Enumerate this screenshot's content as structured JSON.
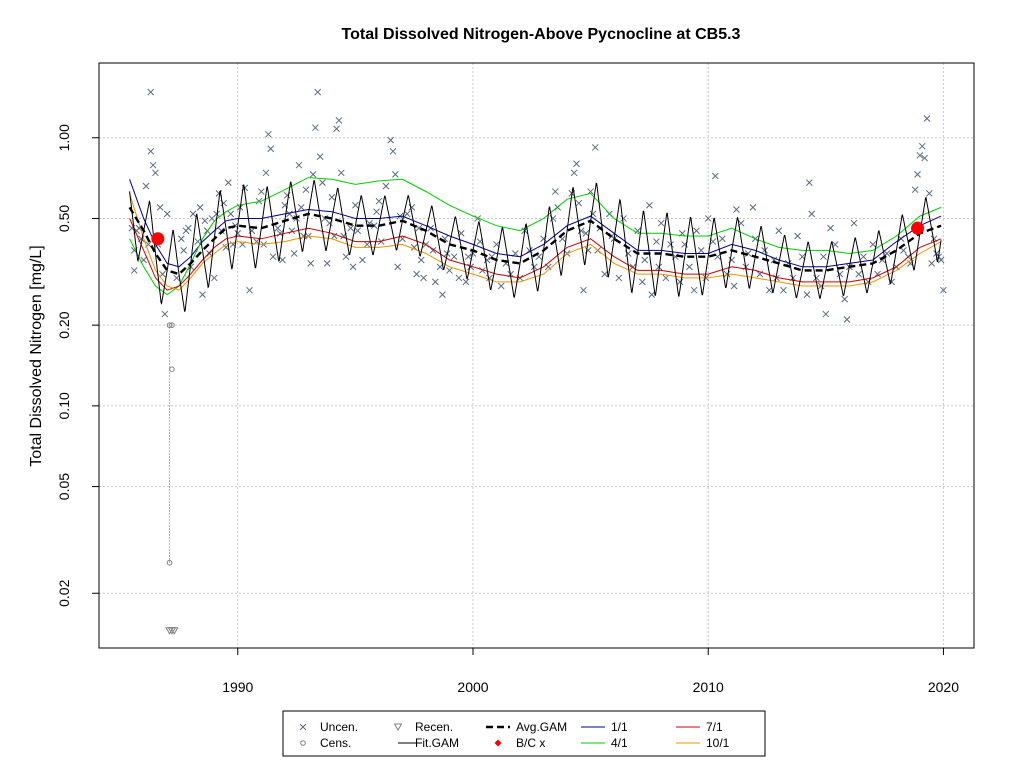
{
  "chart_data": {
    "type": "scatter",
    "title": "Total Dissolved Nitrogen-Above Pycnocline at CB5.3",
    "xlabel": "",
    "ylabel": "Total Dissolved Nitrogen [mg/L]",
    "y_scale": "log",
    "xlim": [
      1984.1,
      2021.3
    ],
    "ylim": [
      0.0125,
      1.9
    ],
    "x_ticks": [
      1990,
      2000,
      2010,
      2020
    ],
    "y_ticks": [
      0.02,
      0.05,
      0.1,
      0.2,
      0.5,
      1.0
    ],
    "y_tick_labels": [
      "0.02",
      "0.05",
      "0.10",
      "0.20",
      "0.50",
      "1.00"
    ],
    "grid": true,
    "legend_position": "bottom",
    "legend": [
      {
        "label": "Uncen.",
        "symbol": "x",
        "color": "#5a6a80"
      },
      {
        "label": "Recen.",
        "symbol": "triangle",
        "color": "#808080"
      },
      {
        "label": "Avg.GAM",
        "symbol": "dashed-line",
        "color": "#000000"
      },
      {
        "label": "1/1",
        "symbol": "line",
        "color": "#00008b"
      },
      {
        "label": "7/1",
        "symbol": "line",
        "color": "#cc0000"
      },
      {
        "label": "Cens.",
        "symbol": "circle",
        "color": "#808080"
      },
      {
        "label": "Fit.GAM",
        "symbol": "line",
        "color": "#000000"
      },
      {
        "label": "B/C x",
        "symbol": "diamond",
        "color": "#ff0000"
      },
      {
        "label": "4/1",
        "symbol": "line",
        "color": "#00cc00"
      },
      {
        "label": "10/1",
        "symbol": "line",
        "color": "#e69500"
      }
    ],
    "avg_gam": {
      "x": [
        1985.4,
        1986.0,
        1986.5,
        1987.0,
        1987.5,
        1988.0,
        1988.5,
        1989.0,
        1989.5,
        1990.0,
        1991.0,
        1992.0,
        1993.0,
        1994.0,
        1995.0,
        1996.0,
        1997.0,
        1998.0,
        1999.0,
        2000.0,
        2001.0,
        2002.0,
        2003.0,
        2004.0,
        2005.0,
        2006.0,
        2007.0,
        2008.0,
        2009.0,
        2010.0,
        2011.0,
        2012.0,
        2013.0,
        2014.0,
        2015.0,
        2016.0,
        2017.0,
        2018.0,
        2019.0,
        2019.9
      ],
      "y": [
        0.55,
        0.45,
        0.37,
        0.32,
        0.31,
        0.34,
        0.38,
        0.42,
        0.46,
        0.47,
        0.46,
        0.49,
        0.52,
        0.5,
        0.47,
        0.47,
        0.49,
        0.45,
        0.4,
        0.38,
        0.35,
        0.34,
        0.38,
        0.45,
        0.49,
        0.42,
        0.37,
        0.37,
        0.36,
        0.36,
        0.38,
        0.36,
        0.34,
        0.32,
        0.32,
        0.33,
        0.34,
        0.38,
        0.44,
        0.47
      ]
    },
    "seasonal_lines": [
      {
        "name": "1/1",
        "color": "#00008b",
        "y": [
          0.7,
          0.5,
          0.4,
          0.34,
          0.33,
          0.36,
          0.41,
          0.45,
          0.49,
          0.5,
          0.5,
          0.52,
          0.54,
          0.53,
          0.5,
          0.5,
          0.51,
          0.47,
          0.43,
          0.4,
          0.37,
          0.36,
          0.4,
          0.47,
          0.51,
          0.44,
          0.38,
          0.38,
          0.37,
          0.37,
          0.4,
          0.38,
          0.35,
          0.33,
          0.33,
          0.34,
          0.35,
          0.41,
          0.47,
          0.51
        ]
      },
      {
        "name": "4/1",
        "color": "#00cc00",
        "y": [
          0.42,
          0.33,
          0.28,
          0.26,
          0.28,
          0.34,
          0.42,
          0.49,
          0.53,
          0.56,
          0.58,
          0.64,
          0.71,
          0.7,
          0.67,
          0.69,
          0.7,
          0.63,
          0.56,
          0.51,
          0.47,
          0.45,
          0.5,
          0.59,
          0.62,
          0.5,
          0.44,
          0.44,
          0.43,
          0.43,
          0.46,
          0.42,
          0.39,
          0.38,
          0.38,
          0.37,
          0.38,
          0.43,
          0.51,
          0.55
        ]
      },
      {
        "name": "7/1",
        "color": "#cc0000",
        "y": [
          0.5,
          0.38,
          0.3,
          0.27,
          0.28,
          0.31,
          0.35,
          0.39,
          0.42,
          0.43,
          0.42,
          0.44,
          0.46,
          0.44,
          0.41,
          0.41,
          0.43,
          0.4,
          0.35,
          0.33,
          0.31,
          0.3,
          0.33,
          0.39,
          0.42,
          0.36,
          0.32,
          0.32,
          0.31,
          0.31,
          0.33,
          0.32,
          0.3,
          0.29,
          0.29,
          0.29,
          0.3,
          0.33,
          0.39,
          0.42
        ]
      },
      {
        "name": "10/1",
        "color": "#e69500",
        "y": [
          0.62,
          0.42,
          0.32,
          0.28,
          0.27,
          0.3,
          0.34,
          0.37,
          0.4,
          0.41,
          0.4,
          0.41,
          0.43,
          0.42,
          0.39,
          0.39,
          0.4,
          0.37,
          0.33,
          0.31,
          0.29,
          0.29,
          0.31,
          0.37,
          0.4,
          0.34,
          0.31,
          0.31,
          0.3,
          0.3,
          0.31,
          0.3,
          0.29,
          0.28,
          0.28,
          0.28,
          0.29,
          0.32,
          0.37,
          0.41
        ]
      }
    ],
    "fit_gam_seasonal": {
      "amplitude_ratio_max": 0.4,
      "amplitude_ratio_min": 0.26,
      "period_years": 1.0
    },
    "bc_points": [
      {
        "x": 1986.6,
        "y": 0.42
      },
      {
        "x": 2018.9,
        "y": 0.46
      }
    ],
    "censored_interval": {
      "x": 1987.1,
      "y_low": 0.026,
      "y_high": 0.2
    },
    "censored_points": [
      {
        "x": 1987.1,
        "y": 0.2
      },
      {
        "x": 1987.2,
        "y": 0.2
      },
      {
        "x": 1987.2,
        "y": 0.137
      },
      {
        "x": 1987.1,
        "y": 0.026
      }
    ],
    "recensored_points": [
      {
        "x": 1987.1,
        "y": 0.0145
      },
      {
        "x": 1987.2,
        "y": 0.0145
      },
      {
        "x": 1987.3,
        "y": 0.0145
      }
    ],
    "uncensored_points": [
      [
        1985.5,
        0.46
      ],
      [
        1985.6,
        0.32
      ],
      [
        1985.6,
        0.38
      ],
      [
        1985.7,
        0.45
      ],
      [
        1985.8,
        0.46
      ],
      [
        1985.9,
        0.42
      ],
      [
        1986.0,
        0.35
      ],
      [
        1986.1,
        0.66
      ],
      [
        1986.2,
        0.4
      ],
      [
        1986.3,
        1.48
      ],
      [
        1986.3,
        0.89
      ],
      [
        1986.4,
        0.79
      ],
      [
        1986.5,
        0.74
      ],
      [
        1986.6,
        0.4
      ],
      [
        1986.7,
        0.55
      ],
      [
        1986.8,
        0.31
      ],
      [
        1986.9,
        0.22
      ],
      [
        1987.0,
        0.52
      ],
      [
        1987.4,
        0.3
      ],
      [
        1987.6,
        0.42
      ],
      [
        1987.7,
        0.38
      ],
      [
        1987.8,
        0.45
      ],
      [
        1987.9,
        0.46
      ],
      [
        1988.0,
        0.33
      ],
      [
        1988.1,
        0.52
      ],
      [
        1988.3,
        0.41
      ],
      [
        1988.4,
        0.55
      ],
      [
        1988.5,
        0.26
      ],
      [
        1988.6,
        0.49
      ],
      [
        1988.7,
        0.45
      ],
      [
        1988.8,
        0.37
      ],
      [
        1988.9,
        0.5
      ],
      [
        1989.0,
        0.3
      ],
      [
        1989.1,
        0.52
      ],
      [
        1989.2,
        0.62
      ],
      [
        1989.3,
        0.45
      ],
      [
        1989.4,
        0.57
      ],
      [
        1989.5,
        0.39
      ],
      [
        1989.6,
        0.68
      ],
      [
        1989.7,
        0.52
      ],
      [
        1989.8,
        0.4
      ],
      [
        1989.9,
        0.47
      ],
      [
        1990.0,
        0.44
      ],
      [
        1990.1,
        0.55
      ],
      [
        1990.2,
        0.4
      ],
      [
        1990.3,
        0.65
      ],
      [
        1990.5,
        0.27
      ],
      [
        1990.6,
        0.45
      ],
      [
        1990.8,
        0.41
      ],
      [
        1990.9,
        0.58
      ],
      [
        1991.0,
        0.63
      ],
      [
        1991.1,
        0.4
      ],
      [
        1991.2,
        0.74
      ],
      [
        1991.3,
        1.03
      ],
      [
        1991.4,
        0.91
      ],
      [
        1991.5,
        0.36
      ],
      [
        1991.7,
        0.46
      ],
      [
        1991.8,
        0.44
      ],
      [
        1991.9,
        0.35
      ],
      [
        1992.0,
        0.56
      ],
      [
        1992.1,
        0.61
      ],
      [
        1992.2,
        0.52
      ],
      [
        1992.3,
        0.45
      ],
      [
        1992.4,
        0.37
      ],
      [
        1992.5,
        0.5
      ],
      [
        1992.6,
        0.79
      ],
      [
        1992.7,
        0.55
      ],
      [
        1992.8,
        0.43
      ],
      [
        1992.9,
        0.64
      ],
      [
        1993.0,
        0.43
      ],
      [
        1993.1,
        0.34
      ],
      [
        1993.2,
        0.73
      ],
      [
        1993.3,
        1.09
      ],
      [
        1993.4,
        1.48
      ],
      [
        1993.5,
        0.85
      ],
      [
        1993.6,
        0.68
      ],
      [
        1993.7,
        0.5
      ],
      [
        1993.8,
        0.34
      ],
      [
        1993.9,
        0.48
      ],
      [
        1994.0,
        0.6
      ],
      [
        1994.1,
        0.43
      ],
      [
        1994.2,
        1.08
      ],
      [
        1994.3,
        1.16
      ],
      [
        1994.4,
        0.74
      ],
      [
        1994.5,
        0.43
      ],
      [
        1994.6,
        0.36
      ],
      [
        1994.8,
        0.46
      ],
      [
        1994.9,
        0.33
      ],
      [
        1995.0,
        0.56
      ],
      [
        1995.1,
        0.45
      ],
      [
        1995.3,
        0.35
      ],
      [
        1995.5,
        0.4
      ],
      [
        1995.6,
        0.48
      ],
      [
        1995.8,
        0.47
      ],
      [
        1995.9,
        0.53
      ],
      [
        1996.0,
        0.58
      ],
      [
        1996.1,
        0.41
      ],
      [
        1996.3,
        0.66
      ],
      [
        1996.5,
        0.98
      ],
      [
        1996.6,
        0.89
      ],
      [
        1996.7,
        0.73
      ],
      [
        1996.8,
        0.33
      ],
      [
        1996.9,
        0.51
      ],
      [
        1997.0,
        0.42
      ],
      [
        1997.2,
        0.52
      ],
      [
        1997.4,
        0.55
      ],
      [
        1997.5,
        0.39
      ],
      [
        1997.6,
        0.31
      ],
      [
        1997.7,
        0.46
      ],
      [
        1997.8,
        0.35
      ],
      [
        1997.9,
        0.3
      ],
      [
        1998.0,
        0.4
      ],
      [
        1998.2,
        0.46
      ],
      [
        1998.3,
        0.38
      ],
      [
        1998.4,
        0.29
      ],
      [
        1998.6,
        0.33
      ],
      [
        1998.7,
        0.26
      ],
      [
        1998.8,
        0.42
      ],
      [
        1998.9,
        0.37
      ],
      [
        1999.0,
        0.32
      ],
      [
        1999.2,
        0.36
      ],
      [
        1999.4,
        0.3
      ],
      [
        1999.5,
        0.44
      ],
      [
        1999.7,
        0.29
      ],
      [
        1999.8,
        0.36
      ],
      [
        1999.9,
        0.33
      ],
      [
        2000.0,
        0.37
      ],
      [
        2000.2,
        0.5
      ],
      [
        2000.3,
        0.41
      ],
      [
        2000.4,
        0.32
      ],
      [
        2000.6,
        0.35
      ],
      [
        2000.7,
        0.3
      ],
      [
        2000.8,
        0.36
      ],
      [
        2001.0,
        0.4
      ],
      [
        2001.2,
        0.28
      ],
      [
        2001.4,
        0.34
      ],
      [
        2001.6,
        0.31
      ],
      [
        2001.8,
        0.37
      ],
      [
        2002.0,
        0.3
      ],
      [
        2002.2,
        0.45
      ],
      [
        2002.4,
        0.38
      ],
      [
        2002.6,
        0.33
      ],
      [
        2002.8,
        0.36
      ],
      [
        2003.0,
        0.42
      ],
      [
        2003.2,
        0.33
      ],
      [
        2003.4,
        0.5
      ],
      [
        2003.5,
        0.63
      ],
      [
        2003.6,
        0.55
      ],
      [
        2003.8,
        0.42
      ],
      [
        2004.0,
        0.37
      ],
      [
        2004.2,
        0.62
      ],
      [
        2004.3,
        0.74
      ],
      [
        2004.4,
        0.8
      ],
      [
        2004.5,
        0.57
      ],
      [
        2004.6,
        0.45
      ],
      [
        2004.7,
        0.27
      ],
      [
        2004.8,
        0.44
      ],
      [
        2004.9,
        0.38
      ],
      [
        2005.0,
        0.63
      ],
      [
        2005.1,
        0.52
      ],
      [
        2005.2,
        0.92
      ],
      [
        2005.3,
        0.38
      ],
      [
        2005.4,
        0.46
      ],
      [
        2005.6,
        0.31
      ],
      [
        2005.8,
        0.52
      ],
      [
        2005.9,
        0.43
      ],
      [
        2006.0,
        0.42
      ],
      [
        2006.2,
        0.3
      ],
      [
        2006.4,
        0.5
      ],
      [
        2006.6,
        0.37
      ],
      [
        2006.8,
        0.33
      ],
      [
        2007.0,
        0.45
      ],
      [
        2007.2,
        0.29
      ],
      [
        2007.3,
        0.35
      ],
      [
        2007.5,
        0.56
      ],
      [
        2007.6,
        0.26
      ],
      [
        2007.8,
        0.41
      ],
      [
        2007.9,
        0.33
      ],
      [
        2008.0,
        0.48
      ],
      [
        2008.2,
        0.3
      ],
      [
        2008.4,
        0.4
      ],
      [
        2008.6,
        0.36
      ],
      [
        2008.8,
        0.29
      ],
      [
        2008.9,
        0.44
      ],
      [
        2009.0,
        0.4
      ],
      [
        2009.2,
        0.33
      ],
      [
        2009.4,
        0.27
      ],
      [
        2009.5,
        0.45
      ],
      [
        2009.7,
        0.38
      ],
      [
        2009.9,
        0.3
      ],
      [
        2010.0,
        0.5
      ],
      [
        2010.2,
        0.41
      ],
      [
        2010.3,
        0.72
      ],
      [
        2010.4,
        0.36
      ],
      [
        2010.6,
        0.42
      ],
      [
        2010.8,
        0.31
      ],
      [
        2011.0,
        0.35
      ],
      [
        2011.1,
        0.28
      ],
      [
        2011.2,
        0.54
      ],
      [
        2011.4,
        0.48
      ],
      [
        2011.6,
        0.33
      ],
      [
        2011.7,
        0.37
      ],
      [
        2011.9,
        0.55
      ],
      [
        2012.0,
        0.42
      ],
      [
        2012.2,
        0.31
      ],
      [
        2012.4,
        0.38
      ],
      [
        2012.6,
        0.27
      ],
      [
        2012.8,
        0.35
      ],
      [
        2012.9,
        0.3
      ],
      [
        2013.0,
        0.45
      ],
      [
        2013.2,
        0.27
      ],
      [
        2013.4,
        0.34
      ],
      [
        2013.6,
        0.3
      ],
      [
        2013.8,
        0.43
      ],
      [
        2014.0,
        0.36
      ],
      [
        2014.2,
        0.26
      ],
      [
        2014.3,
        0.68
      ],
      [
        2014.4,
        0.52
      ],
      [
        2014.6,
        0.3
      ],
      [
        2014.8,
        0.28
      ],
      [
        2014.9,
        0.36
      ],
      [
        2015.0,
        0.22
      ],
      [
        2015.2,
        0.46
      ],
      [
        2015.4,
        0.4
      ],
      [
        2015.6,
        0.31
      ],
      [
        2015.8,
        0.25
      ],
      [
        2015.9,
        0.21
      ],
      [
        2016.0,
        0.33
      ],
      [
        2016.2,
        0.48
      ],
      [
        2016.4,
        0.31
      ],
      [
        2016.6,
        0.36
      ],
      [
        2016.8,
        0.29
      ],
      [
        2017.0,
        0.4
      ],
      [
        2017.2,
        0.31
      ],
      [
        2017.4,
        0.35
      ],
      [
        2017.6,
        0.37
      ],
      [
        2017.8,
        0.29
      ],
      [
        2018.0,
        0.33
      ],
      [
        2018.2,
        0.42
      ],
      [
        2018.3,
        0.38
      ],
      [
        2018.5,
        0.36
      ],
      [
        2018.6,
        0.34
      ],
      [
        2018.8,
        0.64
      ],
      [
        2018.9,
        0.73
      ],
      [
        2019.0,
        0.86
      ],
      [
        2019.1,
        0.93
      ],
      [
        2019.2,
        0.84
      ],
      [
        2019.3,
        1.18
      ],
      [
        2019.4,
        0.62
      ],
      [
        2019.5,
        0.34
      ],
      [
        2019.6,
        0.42
      ],
      [
        2019.7,
        0.37
      ],
      [
        2019.8,
        0.36
      ],
      [
        2019.9,
        0.35
      ],
      [
        2020.0,
        0.27
      ]
    ]
  }
}
